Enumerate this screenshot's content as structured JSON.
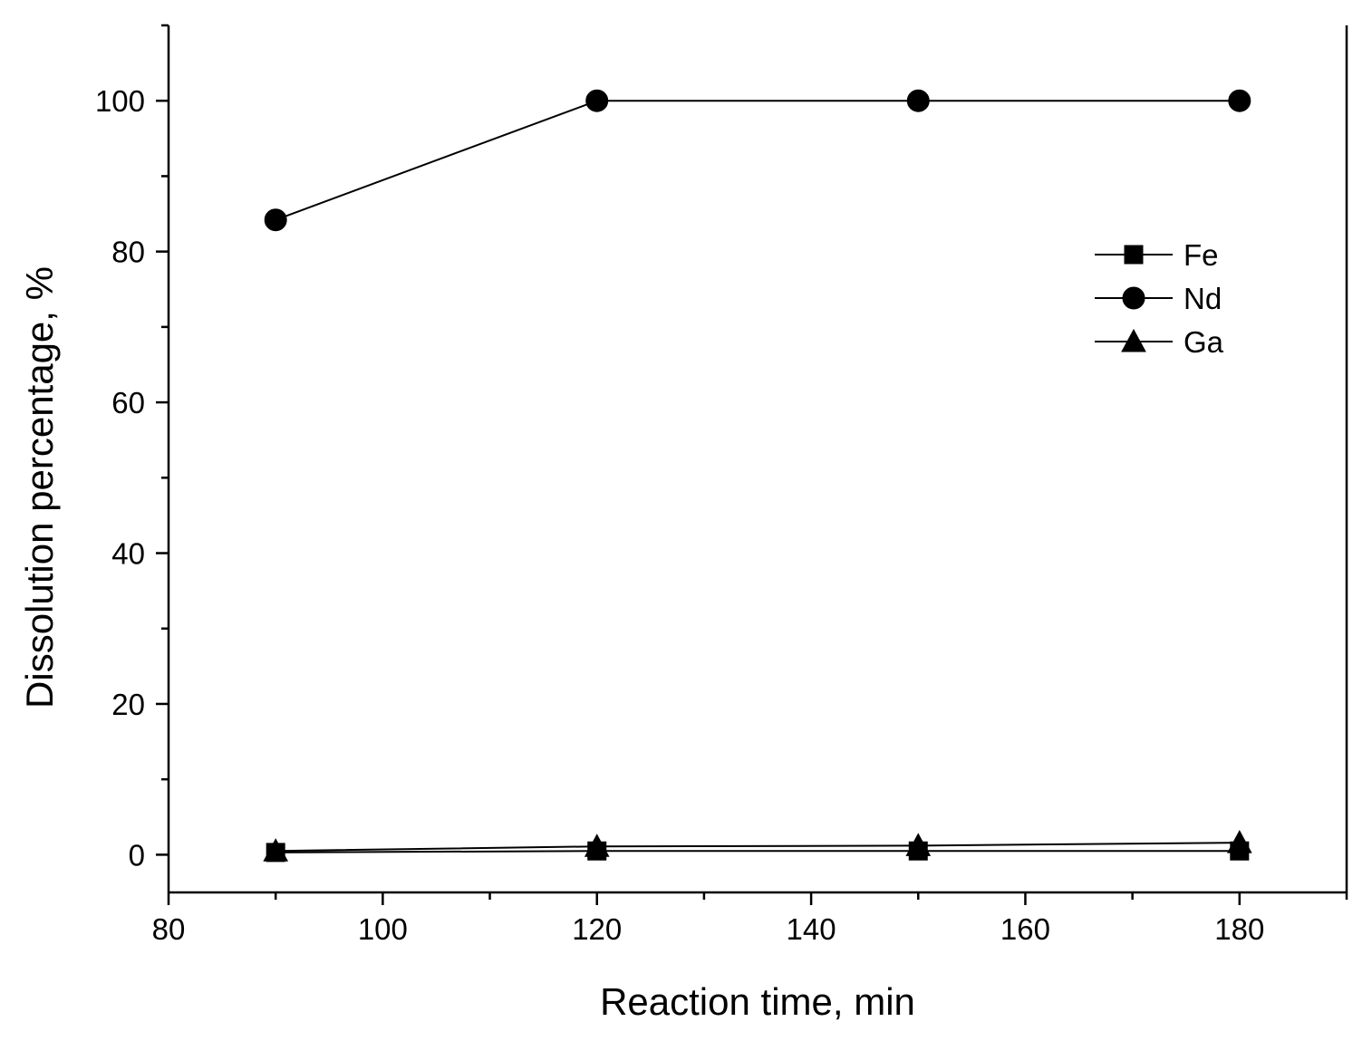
{
  "chart_data": {
    "type": "line",
    "title": "",
    "xlabel": "Reaction time, min",
    "ylabel": "Dissolution percentage, %",
    "xlim": [
      80,
      190
    ],
    "ylim": [
      -5,
      110
    ],
    "x_ticks": [
      80,
      100,
      120,
      140,
      160,
      180
    ],
    "y_ticks": [
      0,
      20,
      40,
      60,
      80,
      100
    ],
    "grid": false,
    "legend_position": "top-right",
    "series": [
      {
        "name": "Fe",
        "marker": "square",
        "x": [
          90,
          120,
          150,
          180
        ],
        "y": [
          0.3,
          0.5,
          0.5,
          0.5
        ]
      },
      {
        "name": "Nd",
        "marker": "circle",
        "x": [
          90,
          120,
          150,
          180
        ],
        "y": [
          84.2,
          100,
          100,
          100
        ]
      },
      {
        "name": "Ga",
        "marker": "triangle",
        "x": [
          90,
          120,
          150,
          180
        ],
        "y": [
          0.5,
          1.1,
          1.2,
          1.6
        ]
      }
    ]
  }
}
